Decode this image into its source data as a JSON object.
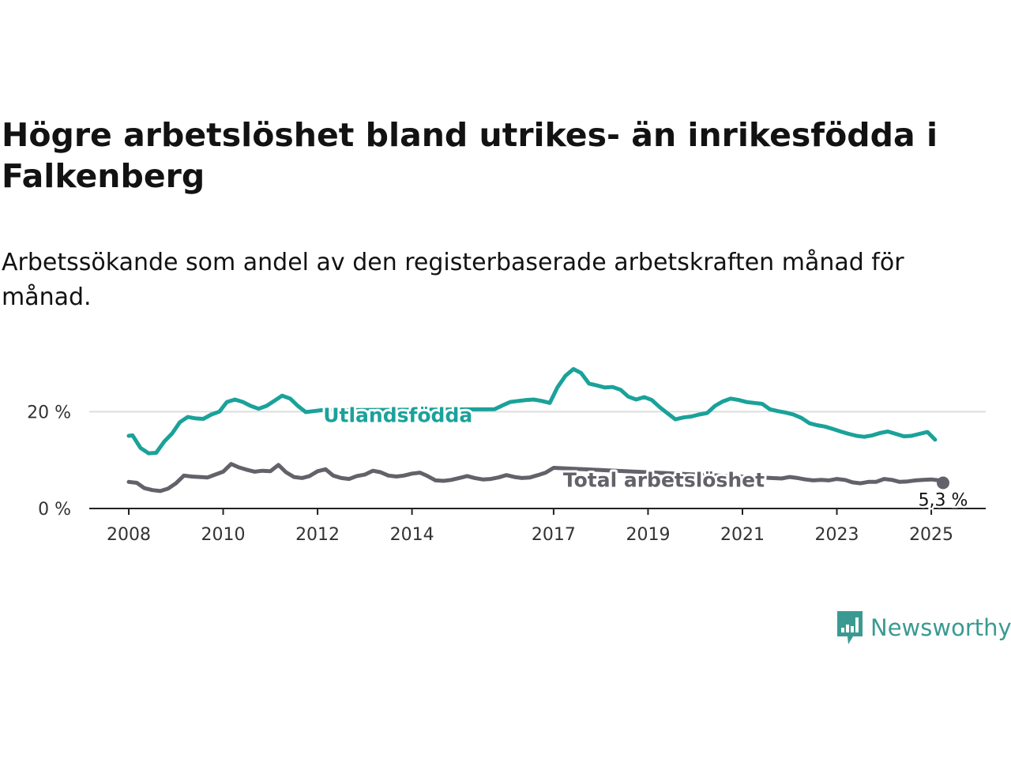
{
  "title": "Högre arbetslöshet bland utrikes- än inrikesfödda i Falkenberg",
  "subtitle": "Arbetssökande som andel av den registerbaserade arbetskraften månad för månad.",
  "logo": {
    "text": "Newsworthy",
    "icon": "newsworthy-chart-icon",
    "color": "#3a9a92"
  },
  "chart_data": {
    "type": "line",
    "x_unit": "year",
    "xlim": [
      2008.0,
      2025.3
    ],
    "ylim": [
      0,
      30
    ],
    "x_ticks": [
      2008,
      2010,
      2012,
      2014,
      2017,
      2019,
      2021,
      2023,
      2025
    ],
    "x_tick_labels": [
      "2008",
      "2010",
      "2012",
      "2014",
      "2017",
      "2019",
      "2021",
      "2023",
      "2025"
    ],
    "y_ticks": [
      0,
      20
    ],
    "y_tick_labels": [
      "0 %",
      "20 %"
    ],
    "grid": "horizontal",
    "legend": "inline",
    "series": [
      {
        "name": "Utlandsfödda",
        "color": "#1aa29a",
        "x": [
          2008.0,
          2008.08,
          2008.25,
          2008.42,
          2008.58,
          2008.75,
          2008.92,
          2009.08,
          2009.25,
          2009.42,
          2009.58,
          2009.75,
          2009.92,
          2010.08,
          2010.25,
          2010.42,
          2010.58,
          2010.75,
          2010.92,
          2011.08,
          2011.25,
          2011.42,
          2011.58,
          2011.75,
          2011.92,
          2012.08,
          2015.75,
          2015.92,
          2016.08,
          2016.25,
          2016.42,
          2016.58,
          2016.75,
          2016.92,
          2017.08,
          2017.25,
          2017.42,
          2017.58,
          2017.75,
          2017.92,
          2018.08,
          2018.25,
          2018.42,
          2018.58,
          2018.75,
          2018.92,
          2019.08,
          2019.25,
          2019.42,
          2019.58,
          2019.75,
          2019.92,
          2020.08,
          2020.25,
          2020.42,
          2020.58,
          2020.75,
          2020.92,
          2021.08,
          2021.25,
          2021.42,
          2021.58,
          2021.75,
          2021.92,
          2022.08,
          2022.25,
          2022.42,
          2022.58,
          2022.75,
          2022.92,
          2023.08,
          2023.25,
          2023.42,
          2023.58,
          2023.75,
          2023.92,
          2024.08,
          2024.25,
          2024.42,
          2024.58,
          2024.75,
          2024.92,
          2025.08
        ],
        "y": [
          15.0,
          15.1,
          12.5,
          11.4,
          11.5,
          13.8,
          15.5,
          17.8,
          18.9,
          18.6,
          18.5,
          19.4,
          20.0,
          22.0,
          22.5,
          22.0,
          21.2,
          20.6,
          21.2,
          22.2,
          23.3,
          22.7,
          21.2,
          19.9,
          20.1,
          20.3,
          20.5,
          21.3,
          22.0,
          22.2,
          22.4,
          22.5,
          22.2,
          21.8,
          25.0,
          27.4,
          28.8,
          28.0,
          25.8,
          25.4,
          25.0,
          25.1,
          24.5,
          23.1,
          22.5,
          23.0,
          22.4,
          20.9,
          19.6,
          18.4,
          18.8,
          19.0,
          19.4,
          19.7,
          21.2,
          22.1,
          22.7,
          22.4,
          22.0,
          21.8,
          21.6,
          20.5,
          20.1,
          19.8,
          19.4,
          18.7,
          17.6,
          17.2,
          16.9,
          16.4,
          15.9,
          15.4,
          15.0,
          14.8,
          15.1,
          15.6,
          15.9,
          15.4,
          14.9,
          15.0,
          15.4,
          15.8,
          14.2
        ]
      },
      {
        "name": "Total arbetslöshet",
        "color": "#636169",
        "x": [
          2008.0,
          2008.17,
          2008.33,
          2008.5,
          2008.67,
          2008.83,
          2009.0,
          2009.17,
          2009.33,
          2009.5,
          2009.67,
          2009.83,
          2010.0,
          2010.17,
          2010.33,
          2010.5,
          2010.67,
          2010.83,
          2011.0,
          2011.17,
          2011.33,
          2011.5,
          2011.67,
          2011.83,
          2012.0,
          2012.17,
          2012.33,
          2012.5,
          2012.67,
          2012.83,
          2013.0,
          2013.17,
          2013.33,
          2013.5,
          2013.67,
          2013.83,
          2014.0,
          2014.17,
          2014.33,
          2014.5,
          2014.67,
          2014.83,
          2015.0,
          2015.17,
          2015.33,
          2015.5,
          2015.67,
          2015.83,
          2016.0,
          2016.17,
          2016.33,
          2016.5,
          2016.67,
          2016.83,
          2017.0,
          2021.83,
          2022.0,
          2022.17,
          2022.33,
          2022.5,
          2022.67,
          2022.83,
          2023.0,
          2023.17,
          2023.33,
          2023.5,
          2023.67,
          2023.83,
          2024.0,
          2024.17,
          2024.33,
          2024.5,
          2024.67,
          2024.83,
          2025.0,
          2025.17,
          2025.25
        ],
        "y": [
          5.5,
          5.3,
          4.2,
          3.8,
          3.6,
          4.1,
          5.2,
          6.8,
          6.6,
          6.5,
          6.4,
          7.0,
          7.6,
          9.2,
          8.5,
          8.0,
          7.6,
          7.8,
          7.7,
          9.0,
          7.5,
          6.5,
          6.3,
          6.7,
          7.7,
          8.1,
          6.8,
          6.3,
          6.1,
          6.7,
          7.0,
          7.8,
          7.5,
          6.8,
          6.6,
          6.8,
          7.2,
          7.4,
          6.7,
          5.8,
          5.7,
          5.9,
          6.3,
          6.7,
          6.3,
          6.0,
          6.1,
          6.4,
          6.9,
          6.5,
          6.3,
          6.4,
          6.9,
          7.4,
          8.4,
          6.2,
          6.5,
          6.3,
          6.0,
          5.8,
          5.9,
          5.8,
          6.1,
          5.9,
          5.4,
          5.2,
          5.5,
          5.5,
          6.1,
          5.9,
          5.5,
          5.6,
          5.8,
          5.9,
          6.0,
          5.8,
          5.3
        ]
      }
    ],
    "annotations": [
      {
        "series": "Utlandsfödda",
        "text": "Utlandsfödda"
      },
      {
        "series": "Total arbetslöshet",
        "text": "Total arbetslöshet"
      },
      {
        "series": "Total arbetslöshet",
        "text": "5,3 %",
        "x": 2025.25,
        "y": 5.3
      }
    ]
  }
}
